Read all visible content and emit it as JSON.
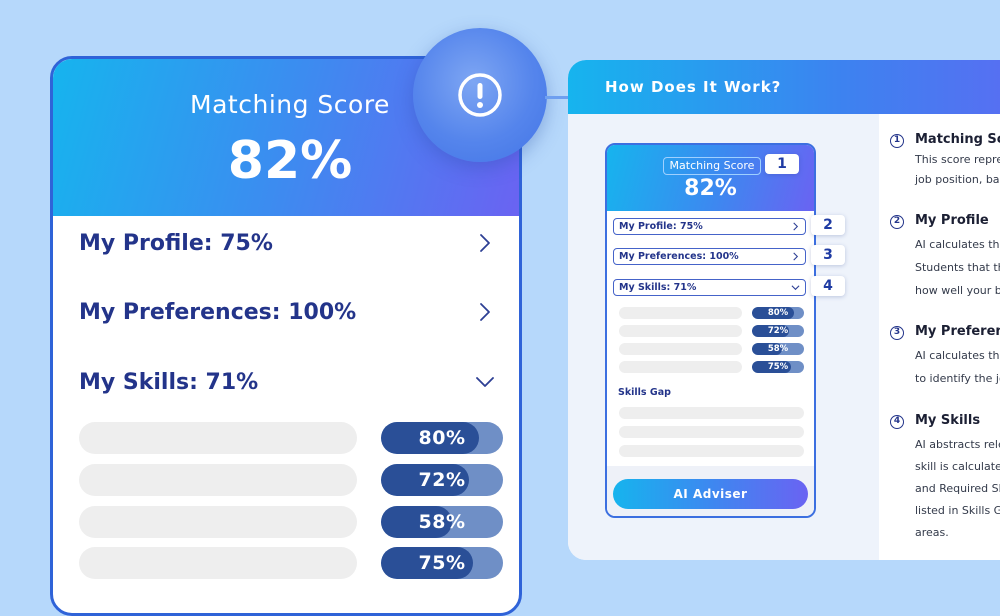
{
  "main_card": {
    "title": "Matching Score",
    "score": "82%",
    "rows": [
      {
        "label": "My Profile: 75%",
        "expanded": false
      },
      {
        "label": "My Preferences: 100%",
        "expanded": false
      },
      {
        "label": "My Skills: 71%",
        "expanded": true
      }
    ],
    "skills": [
      {
        "label": "80%",
        "value": 80
      },
      {
        "label": "72%",
        "value": 72
      },
      {
        "label": "58%",
        "value": 58
      },
      {
        "label": "75%",
        "value": 75
      }
    ]
  },
  "alert": {
    "icon": "exclamation-circle-icon"
  },
  "panel": {
    "title": "How Does It Work?",
    "mini_card": {
      "title": "Matching Score",
      "score": "82%",
      "rows": [
        {
          "label": "My Profile: 75%"
        },
        {
          "label": "My Preferences: 100%"
        },
        {
          "label": "My Skills: 71%"
        }
      ],
      "skills": [
        {
          "label": "80%",
          "value": 80
        },
        {
          "label": "72%",
          "value": 72
        },
        {
          "label": "58%",
          "value": 58
        },
        {
          "label": "75%",
          "value": 75
        }
      ],
      "skills_gap_label": "Skills Gap",
      "button_label": "AI Adviser",
      "tags": [
        "1",
        "2",
        "3",
        "4"
      ]
    },
    "steps": [
      {
        "num": "1",
        "title": "Matching Score",
        "lines": [
          "This score represents",
          "job position, based"
        ]
      },
      {
        "num": "2",
        "title": "My Profile",
        "lines": [
          "AI calculates the",
          "Students that the",
          "how well your b"
        ]
      },
      {
        "num": "3",
        "title": "My Preferences",
        "lines": [
          "AI calculates the",
          "to identify the jo"
        ]
      },
      {
        "num": "4",
        "title": "My Skills",
        "lines": [
          "AI abstracts rele",
          "skill is calculated",
          "and Required Sk",
          "listed in Skills G",
          "areas."
        ]
      }
    ]
  },
  "colors": {
    "background": "#b6d8fb",
    "accent_blue": "#2f63d8",
    "label_navy": "#23348a",
    "pill_dark": "#2a4f97",
    "pill_light": "#6f8fc6"
  }
}
